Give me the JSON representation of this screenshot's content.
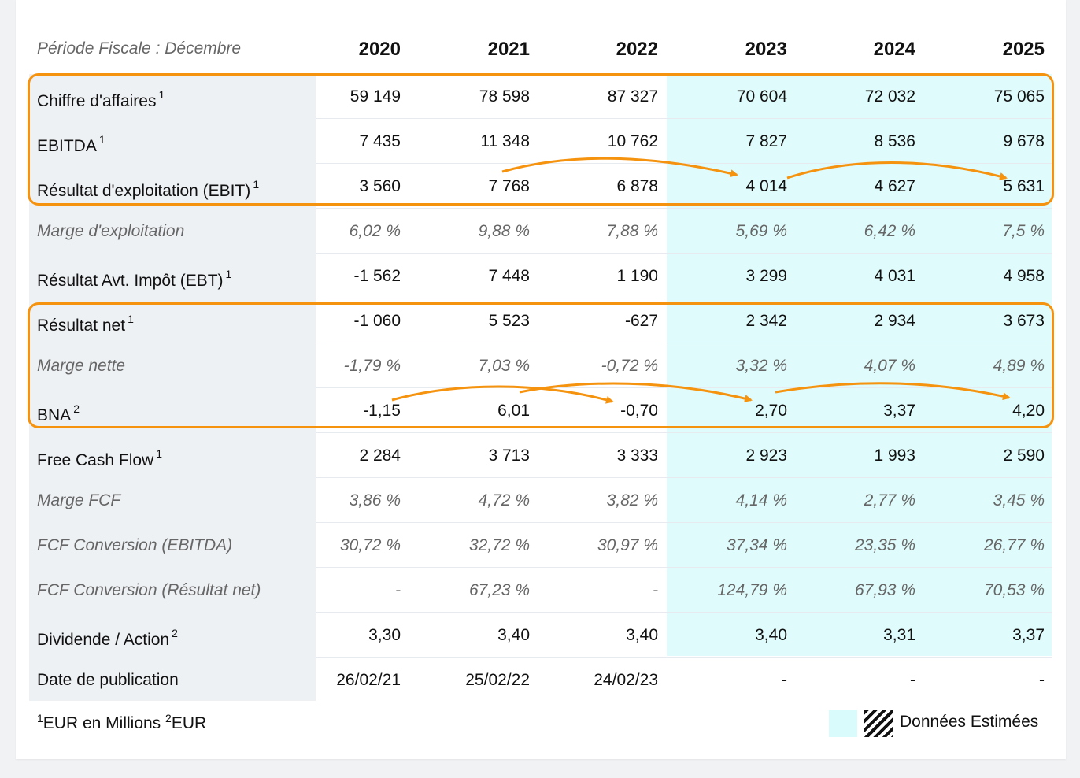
{
  "header": {
    "period_label": "Période Fiscale : Décembre",
    "years": [
      "2020",
      "2021",
      "2022",
      "2023",
      "2024",
      "2025"
    ]
  },
  "rows": [
    {
      "label": "Chiffre d'affaires",
      "note": "1",
      "italic": false,
      "values": [
        "59 149",
        "78 598",
        "87 327",
        "70 604",
        "72 032",
        "75 065"
      ]
    },
    {
      "label": "EBITDA",
      "note": "1",
      "italic": false,
      "values": [
        "7 435",
        "11 348",
        "10 762",
        "7 827",
        "8 536",
        "9 678"
      ]
    },
    {
      "label": "Résultat d'exploitation (EBIT)",
      "note": "1",
      "italic": false,
      "values": [
        "3 560",
        "7 768",
        "6 878",
        "4 014",
        "4 627",
        "5 631"
      ]
    },
    {
      "label": "Marge d'exploitation",
      "note": "",
      "italic": true,
      "values": [
        "6,02 %",
        "9,88 %",
        "7,88 %",
        "5,69 %",
        "6,42 %",
        "7,5 %"
      ]
    },
    {
      "label": "Résultat Avt. Impôt (EBT)",
      "note": "1",
      "italic": false,
      "values": [
        "-1 562",
        "7 448",
        "1 190",
        "3 299",
        "4 031",
        "4 958"
      ]
    },
    {
      "label": "Résultat net",
      "note": "1",
      "italic": false,
      "values": [
        "-1 060",
        "5 523",
        "-627",
        "2 342",
        "2 934",
        "3 673"
      ]
    },
    {
      "label": "Marge nette",
      "note": "",
      "italic": true,
      "values": [
        "-1,79 %",
        "7,03 %",
        "-0,72 %",
        "3,32 %",
        "4,07 %",
        "4,89 %"
      ]
    },
    {
      "label": "BNA",
      "note": "2",
      "italic": false,
      "values": [
        "-1,15",
        "6,01",
        "-0,70",
        "2,70",
        "3,37",
        "4,20"
      ]
    },
    {
      "label": "Free Cash Flow",
      "note": "1",
      "italic": false,
      "values": [
        "2 284",
        "3 713",
        "3 333",
        "2 923",
        "1 993",
        "2 590"
      ]
    },
    {
      "label": "Marge FCF",
      "note": "",
      "italic": true,
      "values": [
        "3,86 %",
        "4,72 %",
        "3,82 %",
        "4,14 %",
        "2,77 %",
        "3,45 %"
      ]
    },
    {
      "label": "FCF Conversion (EBITDA)",
      "note": "",
      "italic": true,
      "values": [
        "30,72 %",
        "32,72 %",
        "30,97 %",
        "37,34 %",
        "23,35 %",
        "26,77 %"
      ]
    },
    {
      "label": "FCF Conversion (Résultat net)",
      "note": "",
      "italic": true,
      "values": [
        "-",
        "67,23 %",
        "-",
        "124,79 %",
        "67,93 %",
        "70,53 %"
      ]
    },
    {
      "label": "Dividende / Action",
      "note": "2",
      "italic": false,
      "values": [
        "3,30",
        "3,40",
        "3,40",
        "3,40",
        "3,31",
        "3,37"
      ]
    },
    {
      "label": "Date de publication",
      "note": "",
      "italic": false,
      "values": [
        "26/02/21",
        "25/02/22",
        "24/02/23",
        "-",
        "-",
        "-"
      ]
    }
  ],
  "footnote": {
    "sup1": "1",
    "text1": "EUR en Millions ",
    "sup2": "2",
    "text2": "EUR"
  },
  "legend": {
    "label": "Données Estimées"
  },
  "colors": {
    "estimate_bg": "#e0fbfb",
    "label_bg": "#eef1f4",
    "highlight": "#f5930f"
  }
}
